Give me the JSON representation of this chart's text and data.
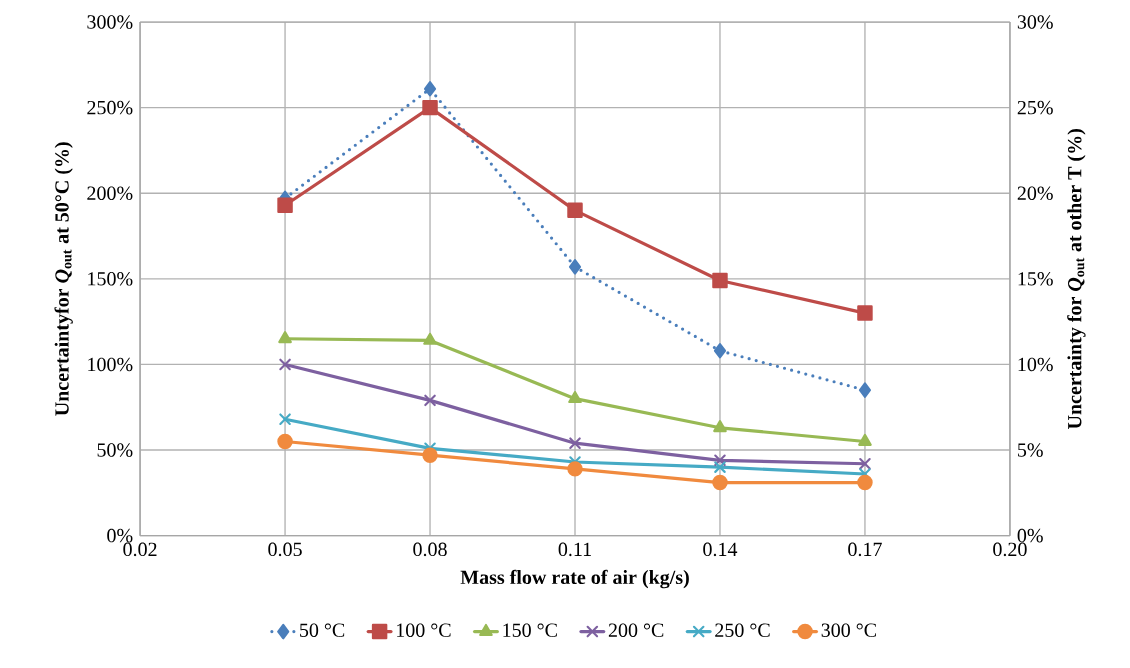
{
  "chart_data": {
    "type": "line",
    "xlabel": "Mass flow rate of air (kg/s)",
    "ylabel": "Uncertaintyfor *Q*$_{out}$ at 50°C (%)",
    "y2label": "Uncertainty for *Q*$_{out}$ at other T (%)",
    "x": [
      0.05,
      0.08,
      0.11,
      0.14,
      0.17
    ],
    "xlim": [
      0.02,
      0.2
    ],
    "xticks": [
      {
        "value": 0.02,
        "label": "0.02"
      },
      {
        "value": 0.05,
        "label": "0.05"
      },
      {
        "value": 0.08,
        "label": "0.08"
      },
      {
        "value": 0.11,
        "label": "0.11"
      },
      {
        "value": 0.14,
        "label": "0.14"
      },
      {
        "value": 0.17,
        "label": "0.17"
      },
      {
        "value": 0.2,
        "label": "0.20"
      }
    ],
    "ylim": [
      0,
      300
    ],
    "yticks": [
      {
        "value": 0,
        "label": "0%"
      },
      {
        "value": 50,
        "label": "50%"
      },
      {
        "value": 100,
        "label": "100%"
      },
      {
        "value": 150,
        "label": "150%"
      },
      {
        "value": 200,
        "label": "200%"
      },
      {
        "value": 250,
        "label": "250%"
      },
      {
        "value": 300,
        "label": "300%"
      }
    ],
    "y2lim": [
      0,
      30
    ],
    "y2ticks": [
      {
        "value": 0,
        "label": "0%"
      },
      {
        "value": 5,
        "label": "5%"
      },
      {
        "value": 10,
        "label": "10%"
      },
      {
        "value": 15,
        "label": "15%"
      },
      {
        "value": 20,
        "label": "20%"
      },
      {
        "value": 25,
        "label": "25%"
      },
      {
        "value": 30,
        "label": "30%"
      }
    ],
    "grid": true,
    "legend": "bottom",
    "series": [
      {
        "name": "50 °C",
        "color": "#4a7ebb",
        "marker": "diamond",
        "line_style": "dotted",
        "axis": "y",
        "values": [
          197,
          261,
          157,
          108,
          85
        ]
      },
      {
        "name": "100 °C",
        "color": "#be4b48",
        "marker": "square",
        "line_style": "solid",
        "axis": "y2",
        "values": [
          19.3,
          25.0,
          19.0,
          14.9,
          13.0
        ]
      },
      {
        "name": "150 °C",
        "color": "#98b954",
        "marker": "triangle",
        "line_style": "solid",
        "axis": "y2",
        "values": [
          11.5,
          11.4,
          8.0,
          6.3,
          5.5
        ]
      },
      {
        "name": "200 °C",
        "color": "#7d60a0",
        "marker": "cross",
        "line_style": "solid",
        "axis": "y2",
        "values": [
          10.0,
          7.9,
          5.4,
          4.4,
          4.2
        ]
      },
      {
        "name": "250 °C",
        "color": "#46aac5",
        "marker": "cross",
        "line_style": "solid",
        "axis": "y2",
        "values": [
          6.8,
          5.1,
          4.3,
          4.0,
          3.6
        ]
      },
      {
        "name": "300 °C",
        "color": "#f08a3e",
        "marker": "circle",
        "line_style": "solid",
        "axis": "y2",
        "values": [
          5.5,
          4.7,
          3.9,
          3.1,
          3.1
        ]
      }
    ]
  }
}
